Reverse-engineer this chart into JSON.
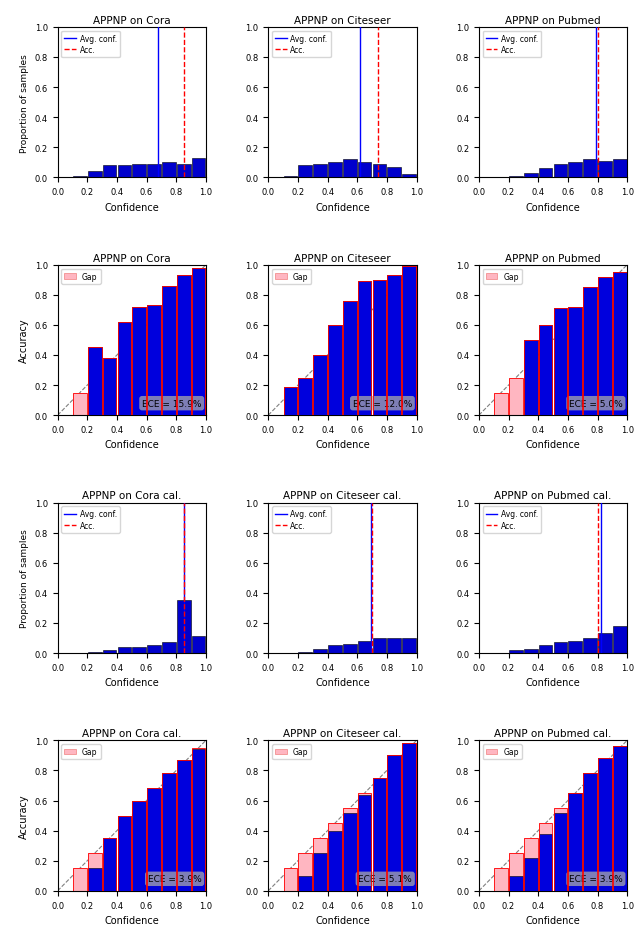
{
  "row1": {
    "titles": [
      "APPNP on Cora",
      "APPNP on Citeseer",
      "APPNP on Pubmed"
    ],
    "avg_conf": [
      0.68,
      0.62,
      0.79
    ],
    "acc": [
      0.85,
      0.74,
      0.8
    ],
    "hist_data": [
      [
        0.0,
        0.01,
        0.04,
        0.08,
        0.08,
        0.09,
        0.09,
        0.1,
        0.09,
        0.13
      ],
      [
        0.0,
        0.01,
        0.08,
        0.09,
        0.1,
        0.12,
        0.1,
        0.09,
        0.07,
        0.02
      ],
      [
        0.0,
        0.0,
        0.01,
        0.03,
        0.06,
        0.09,
        0.1,
        0.12,
        0.11,
        0.12
      ]
    ],
    "bin_edges": [
      0.0,
      0.1,
      0.2,
      0.3,
      0.4,
      0.5,
      0.6,
      0.7,
      0.8,
      0.9,
      1.0
    ]
  },
  "row2": {
    "titles": [
      "APPNP on Cora",
      "APPNP on Citeseer",
      "APPNP on Pubmed"
    ],
    "ece": [
      "ECE = 15.9%",
      "ECE = 12.0%",
      "ECE = 5.0%"
    ],
    "accuracy": [
      [
        0.0,
        0.0,
        0.45,
        0.38,
        0.62,
        0.72,
        0.73,
        0.86,
        0.93,
        0.98
      ],
      [
        0.0,
        0.19,
        0.25,
        0.4,
        0.6,
        0.76,
        0.89,
        0.9,
        0.93,
        0.99
      ],
      [
        0.0,
        0.0,
        0.0,
        0.5,
        0.6,
        0.71,
        0.72,
        0.85,
        0.92,
        0.95
      ]
    ],
    "bin_centers": [
      0.05,
      0.15,
      0.25,
      0.35,
      0.45,
      0.55,
      0.65,
      0.75,
      0.85,
      0.95
    ]
  },
  "row3": {
    "titles": [
      "APPNP on Cora cal.",
      "APPNP on Citeseer cal.",
      "APPNP on Pubmed cal."
    ],
    "avg_conf": [
      0.855,
      0.695,
      0.82
    ],
    "acc": [
      0.853,
      0.697,
      0.8
    ],
    "hist_data": [
      [
        0.0,
        0.0,
        0.01,
        0.02,
        0.04,
        0.04,
        0.05,
        0.07,
        0.35,
        0.11
      ],
      [
        0.0,
        0.0,
        0.01,
        0.03,
        0.05,
        0.06,
        0.08,
        0.1,
        0.1,
        0.1
      ],
      [
        0.0,
        0.0,
        0.02,
        0.03,
        0.05,
        0.07,
        0.08,
        0.1,
        0.13,
        0.18
      ]
    ],
    "bin_edges": [
      0.0,
      0.1,
      0.2,
      0.3,
      0.4,
      0.5,
      0.6,
      0.7,
      0.8,
      0.9,
      1.0
    ]
  },
  "row4": {
    "titles": [
      "APPNP on Cora cal.",
      "APPNP on Citeseer cal.",
      "APPNP on Pubmed cal."
    ],
    "ece": [
      "ECE = 3.9%",
      "ECE = 5.1%",
      "ECE = 3.9%"
    ],
    "accuracy": [
      [
        0.0,
        0.0,
        0.15,
        0.35,
        0.5,
        0.6,
        0.68,
        0.78,
        0.87,
        0.94
      ],
      [
        0.0,
        0.0,
        0.1,
        0.25,
        0.4,
        0.52,
        0.64,
        0.75,
        0.9,
        0.98
      ],
      [
        0.0,
        0.0,
        0.1,
        0.22,
        0.38,
        0.52,
        0.65,
        0.78,
        0.88,
        0.96
      ]
    ],
    "bin_centers": [
      0.05,
      0.15,
      0.25,
      0.35,
      0.45,
      0.55,
      0.65,
      0.75,
      0.85,
      0.95
    ]
  }
}
